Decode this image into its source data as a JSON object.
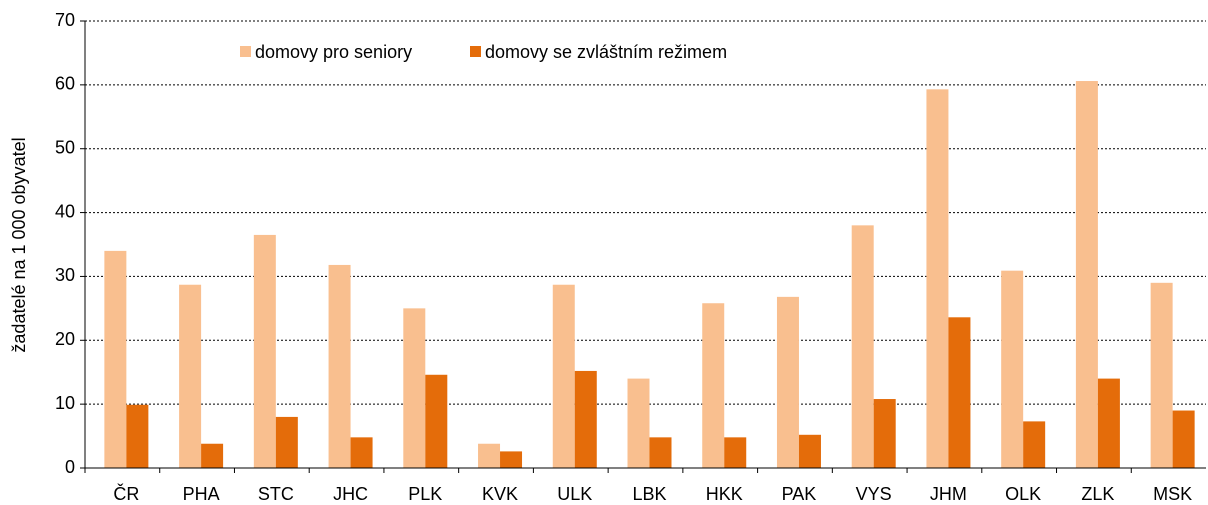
{
  "chart_data": {
    "type": "bar",
    "y_label": "žadatelé na 1 000 obyvatel",
    "categories": [
      "ČR",
      "PHA",
      "STC",
      "JHC",
      "PLK",
      "KVK",
      "ULK",
      "LBK",
      "HKK",
      "PAK",
      "VYS",
      "JHM",
      "OLK",
      "ZLK",
      "MSK"
    ],
    "series": [
      {
        "name": "domovy pro seniory",
        "color": "#f9bf8f",
        "values": [
          34,
          28.7,
          36.5,
          31.8,
          25,
          3.8,
          28.7,
          14,
          25.8,
          26.8,
          38,
          59.3,
          30.9,
          60.6,
          29
        ]
      },
      {
        "name": "domovy se zvláštním režimem",
        "color": "#e46c0a",
        "values": [
          9.9,
          3.8,
          8,
          4.8,
          14.6,
          2.6,
          15.2,
          4.8,
          4.8,
          5.2,
          10.8,
          23.6,
          7.3,
          14,
          9
        ]
      }
    ],
    "ylim": [
      0,
      70
    ],
    "yticks": [
      0,
      10,
      20,
      30,
      40,
      50,
      60,
      70
    ],
    "grid": true,
    "legend": "top"
  }
}
